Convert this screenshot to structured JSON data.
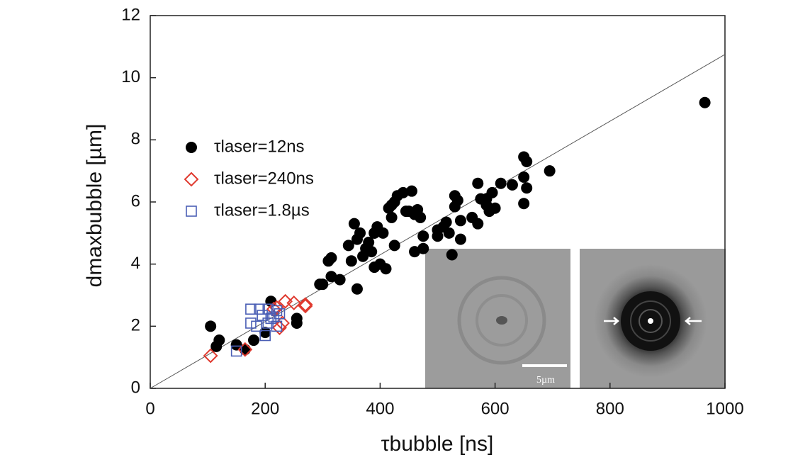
{
  "chart_data": {
    "type": "scatter",
    "xlabel": "τbubble [ns]",
    "ylabel": "dmaxbubble [µm]",
    "xlim": [
      0,
      1000
    ],
    "xticks": [
      0,
      200,
      400,
      600,
      800,
      1000
    ],
    "ylim": [
      0,
      12
    ],
    "yticks": [
      0,
      2,
      4,
      6,
      8,
      10,
      12
    ],
    "legend": "upper left",
    "inset_scale_label": "5µm",
    "fit_line": {
      "x": [
        0,
        1000
      ],
      "y": [
        0,
        10.75
      ],
      "color": "#555555"
    },
    "series": [
      {
        "name": "τlaser=12ns",
        "color": "#000000",
        "marker": "circle",
        "x": [
          105,
          115,
          120,
          150,
          165,
          180,
          200,
          210,
          255,
          255,
          295,
          300,
          310,
          315,
          315,
          330,
          345,
          350,
          355,
          360,
          360,
          365,
          370,
          375,
          380,
          385,
          390,
          390,
          395,
          400,
          410,
          415,
          420,
          425,
          420,
          425,
          430,
          440,
          445,
          450,
          455,
          460,
          465,
          470,
          475,
          475,
          500,
          510,
          515,
          520,
          525,
          530,
          530,
          535,
          540,
          540,
          560,
          570,
          570,
          575,
          585,
          590,
          595,
          610,
          630,
          650,
          650,
          655,
          655,
          695,
          965,
          650,
          600,
          585,
          500,
          460,
          405,
          390
        ],
        "values": [
          2.0,
          1.35,
          1.55,
          1.4,
          1.25,
          1.55,
          1.8,
          2.8,
          2.1,
          2.25,
          3.35,
          3.35,
          4.1,
          4.2,
          3.6,
          3.5,
          4.6,
          4.1,
          5.3,
          4.8,
          3.2,
          5.0,
          4.25,
          4.5,
          4.7,
          4.4,
          5.0,
          3.9,
          5.2,
          4.0,
          3.85,
          5.8,
          5.9,
          6.0,
          5.5,
          4.6,
          6.2,
          6.3,
          5.7,
          5.7,
          6.35,
          4.4,
          5.75,
          5.5,
          4.5,
          4.9,
          4.9,
          5.2,
          5.35,
          5.0,
          4.3,
          5.85,
          6.2,
          6.05,
          5.4,
          4.8,
          5.5,
          5.3,
          6.6,
          6.1,
          5.9,
          5.7,
          6.3,
          6.6,
          6.55,
          7.45,
          6.8,
          7.3,
          6.45,
          7.0,
          9.2,
          5.95,
          5.8,
          6.1,
          5.1,
          5.6,
          5.0,
          5.0
        ]
      },
      {
        "name": "τlaser=240ns",
        "color": "#e03a2f",
        "marker": "diamond",
        "x": [
          105,
          165,
          215,
          220,
          225,
          230,
          235,
          250,
          270,
          270
        ],
        "values": [
          1.05,
          1.25,
          2.55,
          2.6,
          1.95,
          2.1,
          2.8,
          2.75,
          2.7,
          2.65
        ]
      },
      {
        "name": "τlaser=1.8µs",
        "color": "#4b5fb5",
        "marker": "square",
        "x": [
          150,
          175,
          175,
          185,
          190,
          195,
          200,
          205,
          205,
          210,
          215,
          220,
          220,
          225
        ],
        "values": [
          1.2,
          2.55,
          2.1,
          2.0,
          2.55,
          2.35,
          1.7,
          2.55,
          2.1,
          2.25,
          2.3,
          2.0,
          2.5,
          2.4
        ]
      }
    ]
  }
}
